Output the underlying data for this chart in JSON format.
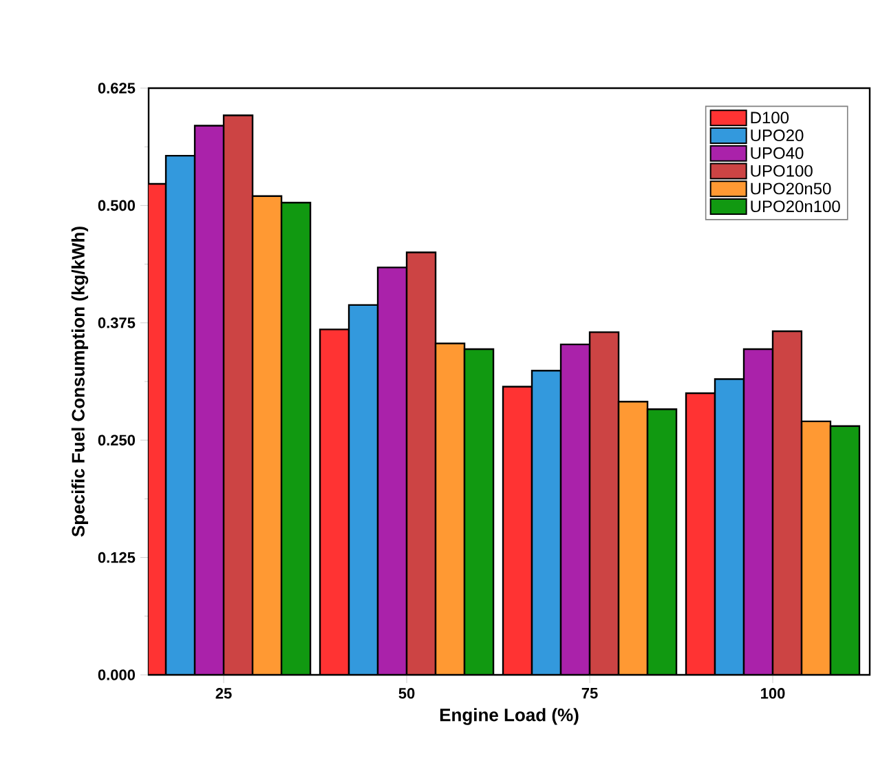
{
  "chart_data": {
    "type": "bar",
    "xlabel": "Engine Load (%)",
    "ylabel": "Specific Fuel Consumption (kg/kWh)",
    "categories": [
      "25",
      "50",
      "75",
      "100"
    ],
    "series": [
      {
        "name": "D100",
        "color": "#ff3333",
        "values": [
          0.523,
          0.368,
          0.307,
          0.3
        ]
      },
      {
        "name": "UPO20",
        "color": "#3399dd",
        "values": [
          0.553,
          0.394,
          0.324,
          0.315
        ]
      },
      {
        "name": "UPO40",
        "color": "#aa22aa",
        "values": [
          0.585,
          0.434,
          0.352,
          0.347
        ]
      },
      {
        "name": "UPO100",
        "color": "#cc4444",
        "values": [
          0.596,
          0.45,
          0.365,
          0.366
        ]
      },
      {
        "name": "UPO20n50",
        "color": "#ff9933",
        "values": [
          0.51,
          0.353,
          0.291,
          0.27
        ]
      },
      {
        "name": "UPO20n100",
        "color": "#119911",
        "values": [
          0.503,
          0.347,
          0.283,
          0.265
        ]
      }
    ],
    "ylim": [
      0,
      0.625
    ],
    "yticks": [
      {
        "value": 0,
        "label": "0.000"
      },
      {
        "value": 0.125,
        "label": "0.125"
      },
      {
        "value": 0.25,
        "label": "0.250"
      },
      {
        "value": 0.375,
        "label": "0.375"
      },
      {
        "value": 0.5,
        "label": "0.500"
      },
      {
        "value": 0.625,
        "label": "0.625"
      }
    ],
    "grid": false,
    "legend": "top right"
  }
}
